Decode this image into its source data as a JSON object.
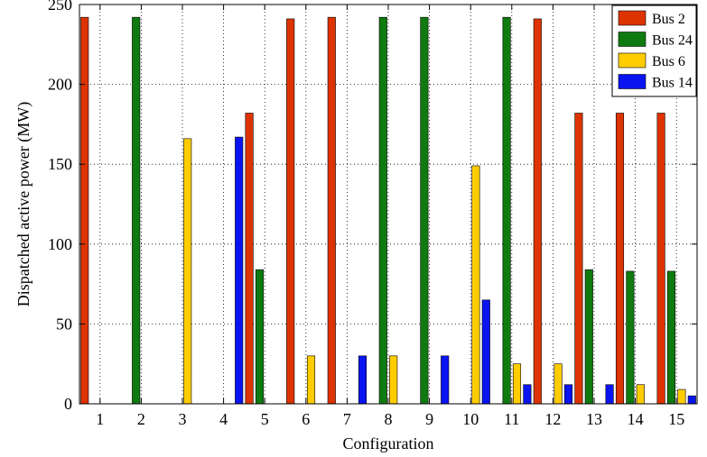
{
  "chart_data": {
    "type": "bar",
    "categories": [
      "1",
      "2",
      "3",
      "4",
      "5",
      "6",
      "7",
      "8",
      "9",
      "10",
      "11",
      "12",
      "13",
      "14",
      "15"
    ],
    "series": [
      {
        "name": "Bus 2",
        "color": "#dd3300",
        "values": [
          242,
          0,
          0,
          0,
          182,
          241,
          242,
          0,
          0,
          0,
          0,
          241,
          182,
          182,
          182
        ]
      },
      {
        "name": "Bus 24",
        "color": "#0f7a0f",
        "values": [
          0,
          242,
          0,
          0,
          84,
          0,
          0,
          242,
          242,
          0,
          242,
          0,
          84,
          83,
          83
        ]
      },
      {
        "name": "Bus 6",
        "color": "#ffcc00",
        "values": [
          0,
          0,
          166,
          0,
          0,
          30,
          0,
          30,
          0,
          149,
          25,
          25,
          0,
          12,
          9
        ]
      },
      {
        "name": "Bus 14",
        "color": "#0a14f0",
        "values": [
          0,
          0,
          0,
          167,
          0,
          0,
          30,
          0,
          30,
          65,
          12,
          12,
          12,
          0,
          5
        ]
      }
    ],
    "xlabel": "Configuration",
    "ylabel": "Dispatched active power (MW)",
    "ylim": [
      0,
      250
    ],
    "yticks": [
      0,
      50,
      100,
      150,
      200,
      250
    ],
    "grid": true,
    "legend_position": "top-right"
  }
}
